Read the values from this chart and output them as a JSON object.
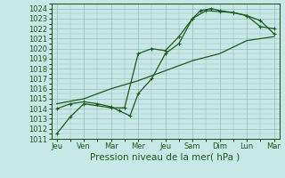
{
  "title": "Pression niveau de la mer( hPa )",
  "bg_color": "#c8e8e8",
  "grid_color": "#9abcbc",
  "line_color": "#1a5c1a",
  "ylim": [
    1011,
    1024.5
  ],
  "yticks": [
    1011,
    1012,
    1013,
    1014,
    1015,
    1016,
    1017,
    1018,
    1019,
    1020,
    1021,
    1022,
    1023,
    1024
  ],
  "xtick_labels": [
    "Jeu",
    "Ven",
    "Mar",
    "Mer",
    "Jeu",
    "Sam",
    "Dim",
    "Lun",
    "Mar"
  ],
  "xtick_positions": [
    0,
    1,
    2,
    3,
    4,
    5,
    6,
    7,
    8
  ],
  "line1_x": [
    0,
    0.5,
    1,
    2,
    2.5,
    3,
    3.5,
    4,
    4.5,
    5,
    5.5,
    6,
    6.5,
    7,
    7.5,
    8
  ],
  "line1_y": [
    1011.5,
    1013.2,
    1014.5,
    1014.1,
    1014.1,
    1019.5,
    1020.0,
    1019.8,
    1021.2,
    1023.0,
    1023.8,
    1023.7,
    1023.6,
    1023.3,
    1022.8,
    1021.5
  ],
  "line2_x": [
    0,
    0.5,
    1,
    1.5,
    2,
    2.3,
    2.7,
    3,
    3.5,
    4,
    4.5,
    5,
    5.3,
    5.7,
    6,
    6.5,
    7,
    7.5,
    8
  ],
  "line2_y": [
    1014.0,
    1014.5,
    1014.7,
    1014.5,
    1014.2,
    1013.8,
    1013.3,
    1015.5,
    1017.0,
    1019.5,
    1020.5,
    1023.0,
    1023.8,
    1024.0,
    1023.8,
    1023.6,
    1023.3,
    1022.2,
    1022.0
  ],
  "line3_x": [
    0,
    1,
    2,
    3,
    4,
    5,
    6,
    7,
    8
  ],
  "line3_y": [
    1014.5,
    1015.0,
    1016.0,
    1016.8,
    1017.8,
    1018.8,
    1019.5,
    1020.8,
    1021.2
  ],
  "marker": "+",
  "markersize": 3.5,
  "linewidth": 0.9,
  "tick_fontsize": 6,
  "xlabel_fontsize": 7.5
}
